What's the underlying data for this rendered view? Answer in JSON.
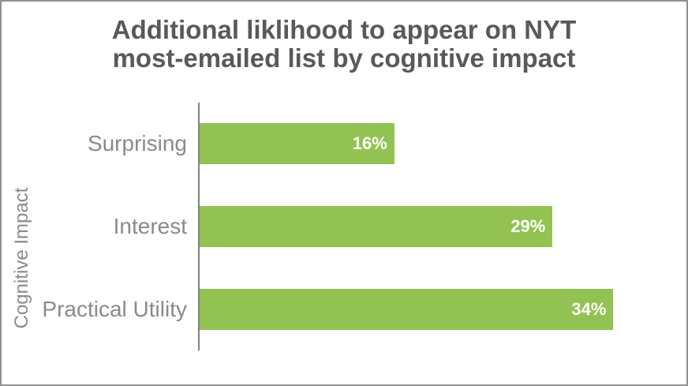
{
  "chart_data": {
    "type": "bar",
    "orientation": "horizontal",
    "title": "Additional liklihood to appear on NYT\nmost-emailed list by cognitive impact",
    "ylabel": "Cognitive Impact",
    "xlabel": "",
    "categories": [
      "Surprising",
      "Interest",
      "Practical Utility"
    ],
    "values": [
      16,
      29,
      34
    ],
    "value_labels": [
      "16%",
      "29%",
      "34%"
    ],
    "xlim": [
      0,
      40
    ],
    "grid": false,
    "legend": false,
    "value_label_position": "inside-end",
    "colors": {
      "bar": "#92c352",
      "title": "#595959",
      "category_label": "#8a8a8a",
      "value_label": "#ffffff",
      "axis": "#808080",
      "frame_border": "#919191"
    }
  }
}
